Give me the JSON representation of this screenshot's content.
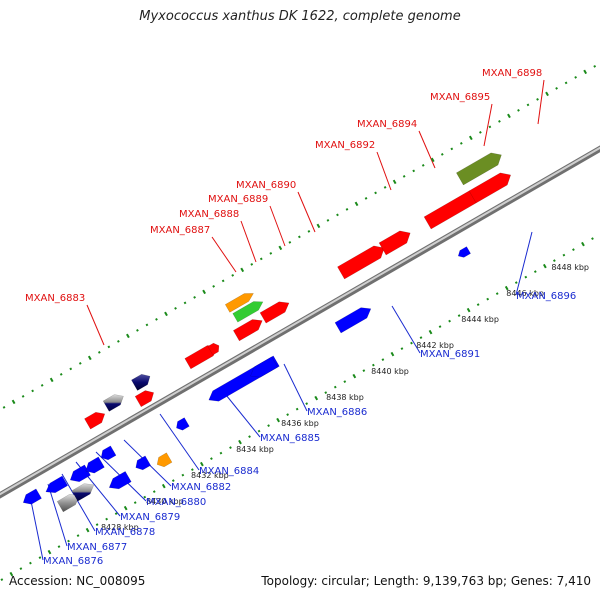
{
  "title": "Myxococcus xanthus DK 1622, complete genome",
  "accession_text": "Accession: NC_008095",
  "summary_text": "Topology: circular; Length: 9,139,763 bp; Genes: 7,410",
  "colors": {
    "forward_gene": "#ff0000",
    "reverse_gene": "#0000ff",
    "dark_gene": "#0a0a6e",
    "gray_gene": "#909090",
    "orange_gene": "#ff9900",
    "green_gene": "#33cc33",
    "olive_gene": "#6b8e23",
    "backbone": "#a0a0a0",
    "tick": "#1a8a1a",
    "forward_label": "#e01010",
    "reverse_label": "#1a2bd0"
  },
  "axis_ticks": [
    "8428 kbp",
    "8430 kbp",
    "8432 kbp",
    "8434 kbp",
    "8436 kbp",
    "8438 kbp",
    "8440 kbp",
    "8442 kbp",
    "8444 kbp",
    "8446 kbp",
    "8448 kbp"
  ],
  "forward_labels": [
    "MXAN_6883",
    "MXAN_6887",
    "MXAN_6888",
    "MXAN_6889",
    "MXAN_6890",
    "MXAN_6892",
    "MXAN_6894",
    "MXAN_6895",
    "MXAN_6898"
  ],
  "reverse_labels": [
    "MXAN_6876",
    "MXAN_6877",
    "MXAN_6878",
    "MXAN_6879",
    "MXAN_6880",
    "MXAN_6882",
    "MXAN_6884",
    "MXAN_6885",
    "MXAN_6886",
    "MXAN_6891",
    "MXAN_6896"
  ]
}
